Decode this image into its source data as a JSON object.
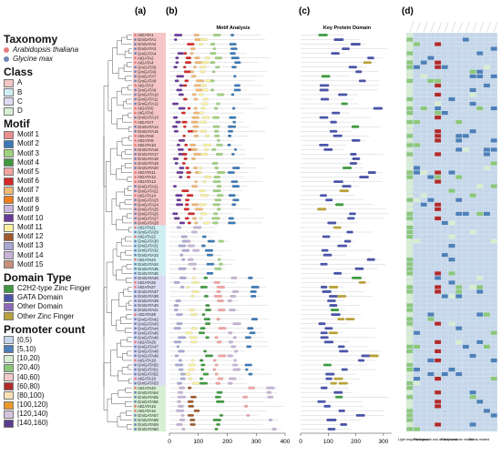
{
  "panels": {
    "a": "(a)",
    "b": "(b)",
    "c": "(c)",
    "d": "(d)"
  },
  "panel_b_title": "Motif Analysis",
  "panel_c_title": "Key Protein Domain",
  "axis_b": {
    "ticks": [
      0,
      100,
      200,
      300,
      400
    ]
  },
  "axis_c": {
    "ticks": [
      0,
      100,
      200,
      300
    ]
  },
  "legend": {
    "taxonomy": {
      "title": "Taxonomy",
      "items": [
        {
          "label": "Arabidopsis thaliana",
          "color": "#e67d7d"
        },
        {
          "label": "Glycine max",
          "color": "#6f86b8"
        }
      ]
    },
    "class": {
      "title": "Class",
      "items": [
        {
          "label": "A",
          "color": "#f6c6c6"
        },
        {
          "label": "B",
          "color": "#cfeef4"
        },
        {
          "label": "C",
          "color": "#dcdcf2"
        },
        {
          "label": "D",
          "color": "#d7efd3"
        }
      ]
    },
    "motif": {
      "title": "Motif",
      "items": [
        {
          "label": "Motif 1",
          "color": "#e98d8d"
        },
        {
          "label": "Motif 2",
          "color": "#3b7ab8"
        },
        {
          "label": "Motif 3",
          "color": "#9fd27d"
        },
        {
          "label": "Motif 4",
          "color": "#3f9a3f"
        },
        {
          "label": "Motif 5",
          "color": "#f4a3a3"
        },
        {
          "label": "Motif 6",
          "color": "#d42a2a"
        },
        {
          "label": "Motif 7",
          "color": "#f2b874"
        },
        {
          "label": "Motif 8",
          "color": "#f07d1c"
        },
        {
          "label": "Motif 9",
          "color": "#c8b5dc"
        },
        {
          "label": "Motif 10",
          "color": "#6a3a9a"
        },
        {
          "label": "Motif 11",
          "color": "#f9f1a1"
        },
        {
          "label": "Motif 12",
          "color": "#a0592c"
        },
        {
          "label": "Motif 13",
          "color": "#a9a9d6"
        },
        {
          "label": "Motif 14",
          "color": "#c7b3d7"
        },
        {
          "label": "Motif 15",
          "color": "#c98e7c"
        }
      ]
    },
    "domain": {
      "title": "Domain Type",
      "items": [
        {
          "label": "C2H2-type Zinc Finger",
          "color": "#3f9a3f"
        },
        {
          "label": "GATA Domain",
          "color": "#4b55a8"
        },
        {
          "label": "Other Domain",
          "color": "#8b6bb8"
        },
        {
          "label": "Other Zinc Finger",
          "color": "#b8a23a"
        }
      ]
    },
    "promoter": {
      "title": "Promoter count",
      "items": [
        {
          "label": "[0,5)",
          "color": "#c5d6ea"
        },
        {
          "label": "[5,10)",
          "color": "#4d7fb8"
        },
        {
          "label": "[10,20)",
          "color": "#d8ecd0"
        },
        {
          "label": "[20,40)",
          "color": "#8bc77a"
        },
        {
          "label": "[40,60)",
          "color": "#f3c9c9"
        },
        {
          "label": "[60,80)",
          "color": "#b12a2a"
        },
        {
          "label": "[80,100)",
          "color": "#f7e2b8"
        },
        {
          "label": "[100,120)",
          "color": "#e89a2c"
        },
        {
          "label": "[120,140)",
          "color": "#d6c4de"
        },
        {
          "label": "[140,160)",
          "color": "#5b3c8e"
        }
      ]
    }
  },
  "heatmap_bottom_labels": [
    "Light responsiveness",
    "Plant growth and development",
    "Plant hormone related",
    "Stress related"
  ],
  "genes": [
    {
      "name": "AtGATA1",
      "cls": "A",
      "sp": "At"
    },
    {
      "name": "GmGATA1",
      "cls": "A",
      "sp": "Gm"
    },
    {
      "name": "GmGATA2",
      "cls": "A",
      "sp": "Gm"
    },
    {
      "name": "GmGATA3",
      "cls": "A",
      "sp": "Gm"
    },
    {
      "name": "GmGATA4",
      "cls": "A",
      "sp": "Gm"
    },
    {
      "name": "AtGATA2",
      "cls": "A",
      "sp": "At"
    },
    {
      "name": "AtGATA4",
      "cls": "A",
      "sp": "At"
    },
    {
      "name": "GmGATA5",
      "cls": "A",
      "sp": "Gm"
    },
    {
      "name": "GmGATA6",
      "cls": "A",
      "sp": "Gm"
    },
    {
      "name": "GmGATA7",
      "cls": "A",
      "sp": "Gm"
    },
    {
      "name": "GmGATA8",
      "cls": "A",
      "sp": "Gm"
    },
    {
      "name": "AtGATA3",
      "cls": "A",
      "sp": "At"
    },
    {
      "name": "GmGATA9",
      "cls": "A",
      "sp": "Gm"
    },
    {
      "name": "GmGATA10",
      "cls": "A",
      "sp": "Gm"
    },
    {
      "name": "GmGATA11",
      "cls": "A",
      "sp": "Gm"
    },
    {
      "name": "GmGATA12",
      "cls": "A",
      "sp": "Gm"
    },
    {
      "name": "AtGATA5",
      "cls": "A",
      "sp": "At"
    },
    {
      "name": "AtGATA6",
      "cls": "A",
      "sp": "At"
    },
    {
      "name": "GmGATA13",
      "cls": "A",
      "sp": "Gm"
    },
    {
      "name": "AtGATA7",
      "cls": "A",
      "sp": "At"
    },
    {
      "name": "GmGATA14",
      "cls": "A",
      "sp": "Gm"
    },
    {
      "name": "GmGATA15",
      "cls": "A",
      "sp": "Gm"
    },
    {
      "name": "AtGATA8",
      "cls": "A",
      "sp": "At"
    },
    {
      "name": "AtGATA9",
      "cls": "A",
      "sp": "At"
    },
    {
      "name": "AtGATA10",
      "cls": "A",
      "sp": "At"
    },
    {
      "name": "GmGATA16",
      "cls": "A",
      "sp": "Gm"
    },
    {
      "name": "GmGATA17",
      "cls": "A",
      "sp": "Gm"
    },
    {
      "name": "GmGATA18",
      "cls": "A",
      "sp": "Gm"
    },
    {
      "name": "GmGATA19",
      "cls": "A",
      "sp": "Gm"
    },
    {
      "name": "GmGATA20",
      "cls": "A",
      "sp": "Gm"
    },
    {
      "name": "AtGATA11",
      "cls": "A",
      "sp": "At"
    },
    {
      "name": "AtGATA12",
      "cls": "A",
      "sp": "At"
    },
    {
      "name": "AtGATA13",
      "cls": "A",
      "sp": "At"
    },
    {
      "name": "GmGATA21",
      "cls": "A",
      "sp": "Gm"
    },
    {
      "name": "GmGATA22",
      "cls": "A",
      "sp": "Gm"
    },
    {
      "name": "AtGATA14",
      "cls": "A",
      "sp": "At"
    },
    {
      "name": "GmGATA23",
      "cls": "A",
      "sp": "Gm"
    },
    {
      "name": "GmGATA24",
      "cls": "A",
      "sp": "Gm"
    },
    {
      "name": "GmGATA25",
      "cls": "A",
      "sp": "Gm"
    },
    {
      "name": "GmGATA26",
      "cls": "A",
      "sp": "Gm"
    },
    {
      "name": "GmGATA27",
      "cls": "A",
      "sp": "Gm"
    },
    {
      "name": "GmGATA28",
      "cls": "A",
      "sp": "Gm"
    },
    {
      "name": "AtGATA21",
      "cls": "B",
      "sp": "At"
    },
    {
      "name": "GmGATA29",
      "cls": "B",
      "sp": "Gm"
    },
    {
      "name": "AtGATA22",
      "cls": "B",
      "sp": "At"
    },
    {
      "name": "GmGATA30",
      "cls": "B",
      "sp": "Gm"
    },
    {
      "name": "GmGATA31",
      "cls": "B",
      "sp": "Gm"
    },
    {
      "name": "GmGATA32",
      "cls": "B",
      "sp": "Gm"
    },
    {
      "name": "GmGATA33",
      "cls": "B",
      "sp": "Gm"
    },
    {
      "name": "AtGATA23",
      "cls": "B",
      "sp": "At"
    },
    {
      "name": "GmGATA34",
      "cls": "B",
      "sp": "Gm"
    },
    {
      "name": "GmGATA35",
      "cls": "B",
      "sp": "Gm"
    },
    {
      "name": "GmGATA36",
      "cls": "B",
      "sp": "Gm"
    },
    {
      "name": "GmGATA26",
      "cls": "C",
      "sp": "Gm"
    },
    {
      "name": "AtGATA25",
      "cls": "C",
      "sp": "At"
    },
    {
      "name": "AtGATA27",
      "cls": "C",
      "sp": "At"
    },
    {
      "name": "GmGATA37",
      "cls": "C",
      "sp": "Gm"
    },
    {
      "name": "GmGATA38",
      "cls": "C",
      "sp": "Gm"
    },
    {
      "name": "GmGATA39",
      "cls": "C",
      "sp": "Gm"
    },
    {
      "name": "GmGATA40",
      "cls": "C",
      "sp": "Gm"
    },
    {
      "name": "GmGATA41",
      "cls": "C",
      "sp": "Gm"
    },
    {
      "name": "AtGATA28",
      "cls": "C",
      "sp": "At"
    },
    {
      "name": "GmGATA42",
      "cls": "C",
      "sp": "Gm"
    },
    {
      "name": "GmGATA43",
      "cls": "C",
      "sp": "Gm"
    },
    {
      "name": "GmGATA44",
      "cls": "C",
      "sp": "Gm"
    },
    {
      "name": "GmGATA45",
      "cls": "C",
      "sp": "Gm"
    },
    {
      "name": "GmGATA46",
      "cls": "C",
      "sp": "Gm"
    },
    {
      "name": "AtGATA29",
      "cls": "C",
      "sp": "At"
    },
    {
      "name": "GmGATA47",
      "cls": "C",
      "sp": "Gm"
    },
    {
      "name": "GmGATA48",
      "cls": "C",
      "sp": "Gm"
    },
    {
      "name": "GmGATA49",
      "cls": "C",
      "sp": "Gm"
    },
    {
      "name": "AtGATA18",
      "cls": "C",
      "sp": "At"
    },
    {
      "name": "GmGATA50",
      "cls": "C",
      "sp": "Gm"
    },
    {
      "name": "GmGATA51",
      "cls": "C",
      "sp": "Gm"
    },
    {
      "name": "GmGATA52",
      "cls": "C",
      "sp": "Gm"
    },
    {
      "name": "AtGATA19",
      "cls": "C",
      "sp": "At"
    },
    {
      "name": "GmGATA53",
      "cls": "C",
      "sp": "Gm"
    },
    {
      "name": "AtGATA20",
      "cls": "D",
      "sp": "At"
    },
    {
      "name": "GmGATA54",
      "cls": "D",
      "sp": "Gm"
    },
    {
      "name": "GmGATA55",
      "cls": "D",
      "sp": "Gm"
    },
    {
      "name": "GmGATA56",
      "cls": "D",
      "sp": "Gm"
    },
    {
      "name": "AtGATA15",
      "cls": "D",
      "sp": "At"
    },
    {
      "name": "AtGATA16",
      "cls": "D",
      "sp": "At"
    },
    {
      "name": "GmGATA57",
      "cls": "D",
      "sp": "Gm"
    },
    {
      "name": "GmGATA58",
      "cls": "D",
      "sp": "Gm"
    },
    {
      "name": "GmGATA59",
      "cls": "D",
      "sp": "Gm"
    },
    {
      "name": "GmGATA60",
      "cls": "D",
      "sp": "Gm"
    }
  ],
  "colors": {
    "classA": "#f6c6c6",
    "classB": "#cfeef4",
    "classC": "#dcdcf2",
    "classD": "#d7efd3",
    "At": "#e67d7d",
    "Gm": "#6f86b8",
    "gridline": "#d0d0d0",
    "heat_bg": "#aec9e0"
  }
}
